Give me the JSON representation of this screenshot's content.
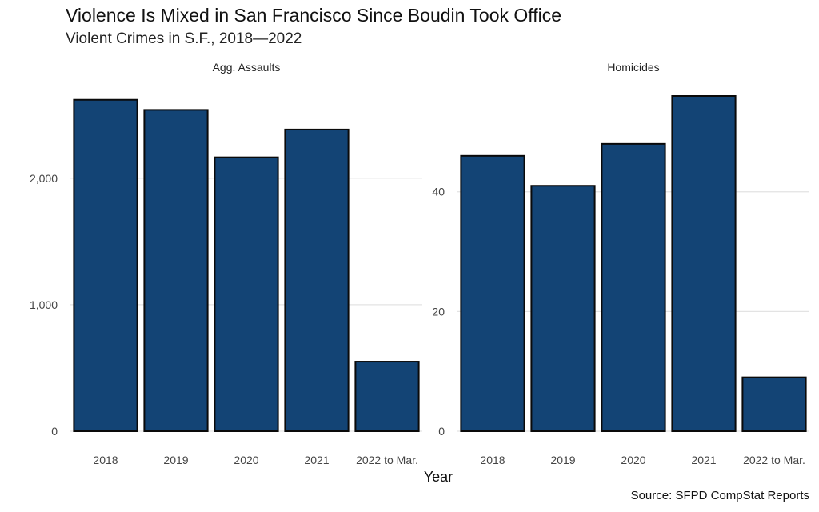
{
  "chart_data": {
    "type": "bar",
    "title": "Violence Is Mixed in San Francisco Since Boudin Took Office",
    "subtitle": "Violent Crimes in S.F., 2018—2022",
    "xlabel": "Year",
    "ylabel": "",
    "caption": "Source: SFPD CompStat Reports",
    "grid": true,
    "bar_color": "#134475",
    "categories": [
      "2018",
      "2019",
      "2020",
      "2021",
      "2022 to Mar."
    ],
    "panels": [
      {
        "name": "Agg. Assaults",
        "values": [
          2620,
          2540,
          2165,
          2385,
          550
        ],
        "ylim": [
          0,
          2650
        ],
        "yticks": [
          0,
          1000,
          2000
        ],
        "ytick_labels": [
          "0",
          "1,000",
          "2,000"
        ]
      },
      {
        "name": "Homicides",
        "values": [
          46,
          41,
          48,
          56,
          9
        ],
        "ylim": [
          0,
          56
        ],
        "yticks": [
          0,
          20,
          40
        ],
        "ytick_labels": [
          "0",
          "20",
          "40"
        ]
      }
    ]
  }
}
